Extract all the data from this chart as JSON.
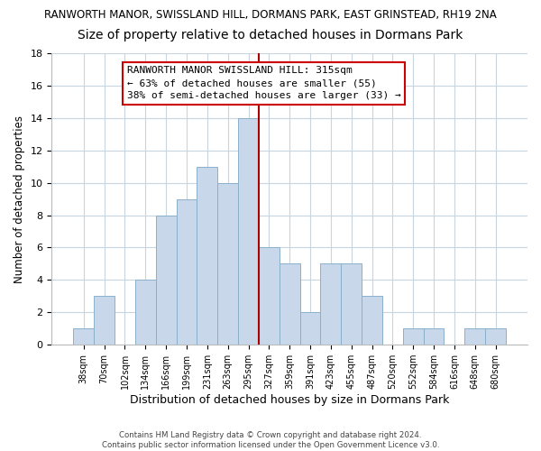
{
  "title": "RANWORTH MANOR, SWISSLAND HILL, DORMANS PARK, EAST GRINSTEAD, RH19 2NA",
  "subtitle": "Size of property relative to detached houses in Dormans Park",
  "xlabel": "Distribution of detached houses by size in Dormans Park",
  "ylabel": "Number of detached properties",
  "bar_labels": [
    "38sqm",
    "70sqm",
    "102sqm",
    "134sqm",
    "166sqm",
    "199sqm",
    "231sqm",
    "263sqm",
    "295sqm",
    "327sqm",
    "359sqm",
    "391sqm",
    "423sqm",
    "455sqm",
    "487sqm",
    "520sqm",
    "552sqm",
    "584sqm",
    "616sqm",
    "648sqm",
    "680sqm"
  ],
  "bar_heights": [
    1,
    3,
    0,
    4,
    8,
    9,
    11,
    10,
    14,
    6,
    5,
    2,
    5,
    5,
    3,
    0,
    1,
    1,
    0,
    1,
    1
  ],
  "bar_color": "#c8d8ea",
  "bar_edge_color": "#8ab0cc",
  "vline_x_idx": 8.5,
  "vline_color": "#aa0000",
  "annotation_line1": "RANWORTH MANOR SWISSLAND HILL: 315sqm",
  "annotation_line2": "← 63% of detached houses are smaller (55)",
  "annotation_line3": "38% of semi-detached houses are larger (33) →",
  "ylim": [
    0,
    18
  ],
  "yticks": [
    0,
    2,
    4,
    6,
    8,
    10,
    12,
    14,
    16,
    18
  ],
  "footer_text": "Contains HM Land Registry data © Crown copyright and database right 2024.\nContains public sector information licensed under the Open Government Licence v3.0.",
  "background_color": "#ffffff",
  "grid_color": "#c8d4de",
  "title_fontsize": 8.5,
  "subtitle_fontsize": 10,
  "annotation_fontsize": 8
}
